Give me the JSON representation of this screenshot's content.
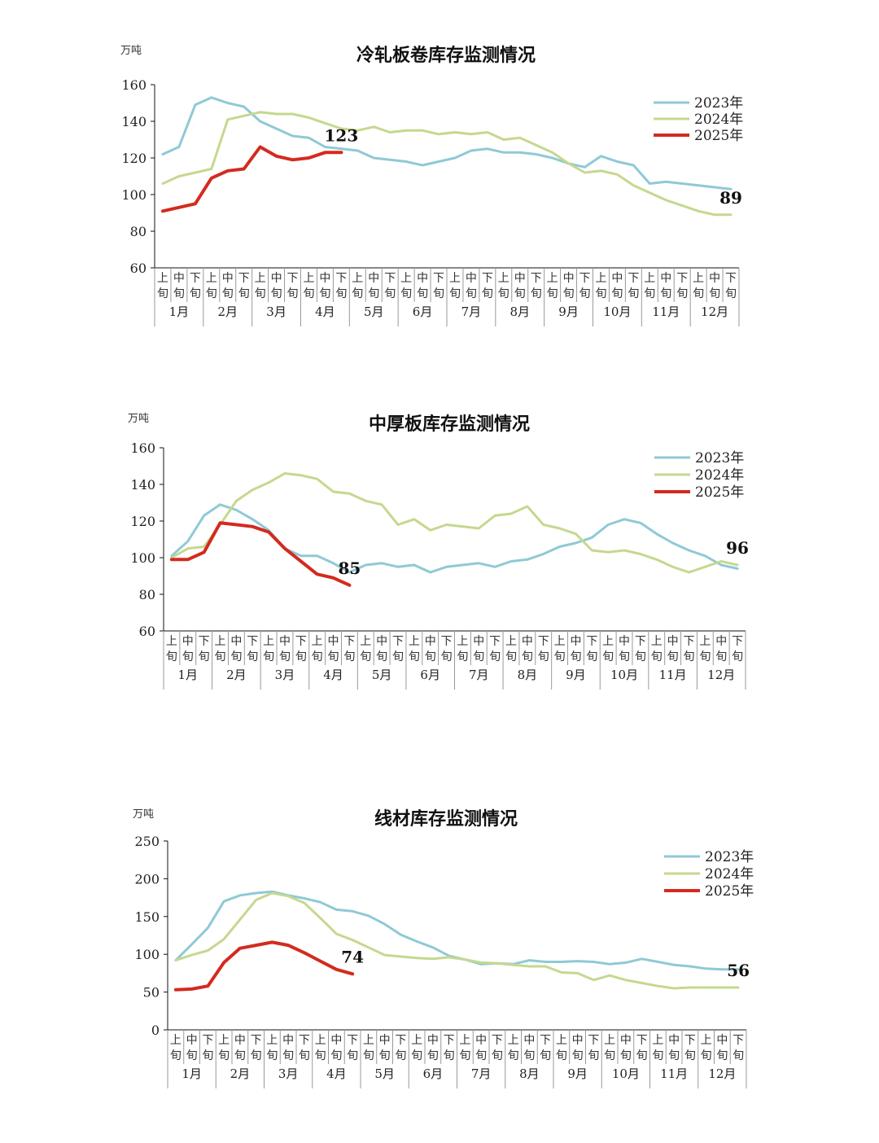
{
  "colors": {
    "s2023": "#8fc9d6",
    "s2024": "#c5d88f",
    "s2025": "#d42a1f"
  },
  "chart_data": [
    {
      "type": "line",
      "title": "冷轧板卷库存监测情况",
      "ylabel": "万吨",
      "ylim": [
        60,
        160
      ],
      "yticks": [
        "160",
        "140",
        "120",
        "100",
        "80",
        "60"
      ],
      "sub_labels": [
        "上旬",
        "中旬",
        "下旬"
      ],
      "months": [
        "1月",
        "2月",
        "3月",
        "4月",
        "5月",
        "6月",
        "7月",
        "8月",
        "9月",
        "10月",
        "11月",
        "12月"
      ],
      "legend": [
        "2023年",
        "2024年",
        "2025年"
      ],
      "series": [
        {
          "name": "2023年",
          "values": [
            122,
            126,
            149,
            153,
            150,
            148,
            140,
            136,
            132,
            131,
            126,
            125,
            124,
            120,
            119,
            118,
            116,
            118,
            120,
            124,
            125,
            123,
            123,
            122,
            120,
            117,
            115,
            121,
            118,
            116,
            106,
            107,
            106,
            105,
            104,
            103
          ]
        },
        {
          "name": "2024年",
          "values": [
            106,
            110,
            112,
            114,
            141,
            143,
            145,
            144,
            144,
            142,
            139,
            136,
            135,
            137,
            134,
            135,
            135,
            133,
            134,
            133,
            134,
            130,
            131,
            127,
            123,
            117,
            112,
            113,
            111,
            105,
            101,
            97,
            94,
            91,
            89,
            89
          ]
        },
        {
          "name": "2025年",
          "values": [
            91,
            93,
            95,
            109,
            113,
            114,
            126,
            121,
            119,
            120,
            123,
            123
          ]
        }
      ],
      "annotations": [
        {
          "text": "123",
          "series": 2,
          "index": 11
        },
        {
          "text": "89",
          "series": 1,
          "index": 35
        }
      ]
    },
    {
      "type": "line",
      "title": "中厚板库存监测情况",
      "ylabel": "万吨",
      "ylim": [
        60,
        160
      ],
      "yticks": [
        "160",
        "140",
        "120",
        "100",
        "80",
        "60"
      ],
      "sub_labels": [
        "上旬",
        "中旬",
        "下旬"
      ],
      "months": [
        "1月",
        "2月",
        "3月",
        "4月",
        "5月",
        "6月",
        "7月",
        "8月",
        "9月",
        "10月",
        "11月",
        "12月"
      ],
      "legend": [
        "2023年",
        "2024年",
        "2025年"
      ],
      "series": [
        {
          "name": "2023年",
          "values": [
            101,
            109,
            123,
            129,
            126,
            121,
            115,
            105,
            101,
            101,
            97,
            92,
            96,
            97,
            95,
            96,
            92,
            95,
            96,
            97,
            95,
            98,
            99,
            102,
            106,
            108,
            111,
            118,
            121,
            119,
            113,
            108,
            104,
            101,
            96,
            94
          ]
        },
        {
          "name": "2024年",
          "values": [
            100,
            105,
            106,
            118,
            131,
            137,
            141,
            146,
            145,
            143,
            136,
            135,
            131,
            129,
            118,
            121,
            115,
            118,
            117,
            116,
            123,
            124,
            128,
            118,
            116,
            113,
            104,
            103,
            104,
            102,
            99,
            95,
            92,
            95,
            98,
            96
          ]
        },
        {
          "name": "2025年",
          "values": [
            99,
            99,
            103,
            119,
            118,
            117,
            114,
            105,
            98,
            91,
            89,
            85
          ]
        }
      ],
      "annotations": [
        {
          "text": "85",
          "series": 2,
          "index": 11
        },
        {
          "text": "96",
          "series": 1,
          "index": 35
        }
      ]
    },
    {
      "type": "line",
      "title": "线材库存监测情况",
      "ylabel": "万吨",
      "ylim": [
        0,
        250
      ],
      "yticks": [
        "250",
        "200",
        "150",
        "100",
        "50",
        "0"
      ],
      "sub_labels": [
        "上旬",
        "中旬",
        "下旬"
      ],
      "months": [
        "1月",
        "2月",
        "3月",
        "4月",
        "5月",
        "6月",
        "7月",
        "8月",
        "9月",
        "10月",
        "11月",
        "12月"
      ],
      "legend": [
        "2023年",
        "2024年",
        "2025年"
      ],
      "series": [
        {
          "name": "2023年",
          "values": [
            92,
            113,
            135,
            170,
            178,
            181,
            183,
            178,
            174,
            169,
            159,
            157,
            151,
            140,
            126,
            117,
            109,
            98,
            93,
            87,
            88,
            87,
            92,
            90,
            90,
            91,
            90,
            87,
            89,
            94,
            90,
            86,
            84,
            81,
            80,
            80
          ]
        },
        {
          "name": "2024年",
          "values": [
            92,
            99,
            105,
            120,
            146,
            172,
            181,
            177,
            168,
            148,
            127,
            119,
            109,
            99,
            97,
            95,
            94,
            96,
            93,
            89,
            88,
            86,
            84,
            84,
            76,
            75,
            66,
            72,
            66,
            62,
            58,
            55,
            56,
            56,
            56,
            56
          ]
        },
        {
          "name": "2025年",
          "values": [
            53,
            54,
            58,
            89,
            108,
            112,
            116,
            112,
            102,
            91,
            80,
            74
          ]
        }
      ],
      "annotations": [
        {
          "text": "74",
          "series": 2,
          "index": 11
        },
        {
          "text": "56",
          "series": 1,
          "index": 35
        }
      ]
    }
  ]
}
